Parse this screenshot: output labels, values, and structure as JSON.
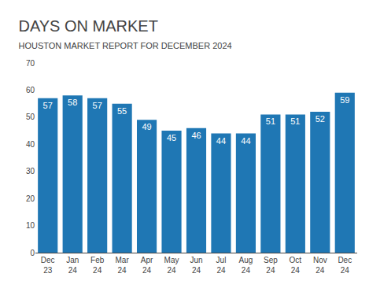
{
  "chart_data": {
    "type": "bar",
    "title": "DAYS ON MARKET",
    "subtitle": "HOUSTON MARKET REPORT FOR DECEMBER 2024",
    "categories": [
      "Dec\n23",
      "Jan\n24",
      "Feb\n24",
      "Mar\n24",
      "Apr\n24",
      "May\n24",
      "Jun\n24",
      "Jul\n24",
      "Aug\n24",
      "Sep\n24",
      "Oct\n24",
      "Nov\n24",
      "Dec\n24"
    ],
    "values": [
      57,
      58,
      57,
      55,
      49,
      45,
      46,
      44,
      44,
      51,
      51,
      52,
      59
    ],
    "ylim": [
      0,
      70
    ],
    "yticks": [
      0,
      10,
      20,
      30,
      40,
      50,
      60,
      70
    ],
    "grid": false,
    "data_labels": true
  }
}
